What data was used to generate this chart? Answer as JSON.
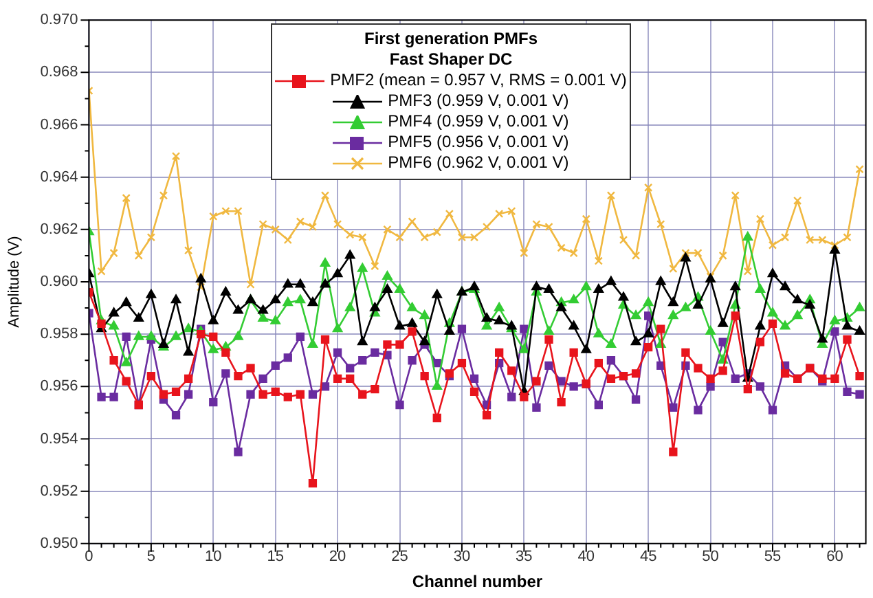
{
  "chart_data": {
    "type": "line",
    "xlabel": "Channel number",
    "ylabel": "Amplitude (V)",
    "legend_title": "First generation PMFs\nFast Shaper DC",
    "legend": "top",
    "grid": true,
    "line_style": "solid",
    "x": [
      0,
      1,
      2,
      3,
      4,
      5,
      6,
      7,
      8,
      9,
      10,
      11,
      12,
      13,
      14,
      15,
      16,
      17,
      18,
      19,
      20,
      21,
      22,
      23,
      24,
      25,
      26,
      27,
      28,
      29,
      30,
      31,
      32,
      33,
      34,
      35,
      36,
      37,
      38,
      39,
      40,
      41,
      42,
      43,
      44,
      45,
      46,
      47,
      48,
      49,
      50,
      51,
      52,
      53,
      54,
      55,
      56,
      57,
      58,
      59,
      60,
      61,
      62
    ],
    "xlim": [
      0,
      62.5
    ],
    "xticks": [
      0,
      5,
      10,
      15,
      20,
      25,
      30,
      35,
      40,
      45,
      50,
      55,
      60
    ],
    "ylim": [
      0.95,
      0.97
    ],
    "yticks": [
      {
        "value": 0.95,
        "label": "0.950"
      },
      {
        "value": 0.952,
        "label": "0.952"
      },
      {
        "value": 0.954,
        "label": "0.954"
      },
      {
        "value": 0.956,
        "label": "0.956"
      },
      {
        "value": 0.958,
        "label": "0.958"
      },
      {
        "value": 0.96,
        "label": "0.960"
      },
      {
        "value": 0.962,
        "label": "0.962"
      },
      {
        "value": 0.964,
        "label": "0.964"
      },
      {
        "value": 0.966,
        "label": "0.966"
      },
      {
        "value": 0.968,
        "label": "0.968"
      },
      {
        "value": 0.97,
        "label": "0.970"
      }
    ],
    "series": [
      {
        "name": "PMF2 (mean = 0.957 V, RMS = 0.001 V)",
        "color": "#e8141c",
        "marker": "square",
        "values": [
          0.9596,
          0.9584,
          0.957,
          0.9562,
          0.9553,
          0.9564,
          0.9557,
          0.9558,
          0.9563,
          0.958,
          0.9579,
          0.9573,
          0.9564,
          0.9567,
          0.9557,
          0.9558,
          0.9556,
          0.9557,
          0.9523,
          0.9578,
          0.9563,
          0.9563,
          0.9557,
          0.9559,
          0.9576,
          0.9576,
          0.9581,
          0.9564,
          0.9548,
          0.9565,
          0.9569,
          0.9558,
          0.9549,
          0.9573,
          0.9566,
          0.9556,
          0.9562,
          0.9578,
          0.9554,
          0.9573,
          0.9561,
          0.9569,
          0.9563,
          0.9564,
          0.9565,
          0.9575,
          0.9582,
          0.9535,
          0.9573,
          0.9567,
          0.9563,
          0.9566,
          0.9587,
          0.9559,
          0.9577,
          0.9584,
          0.9565,
          0.9563,
          0.9567,
          0.9563,
          0.9563,
          0.9578,
          0.9564
        ]
      },
      {
        "name": "PMF3 (0.959 V, 0.001 V)",
        "color": "#000000",
        "marker": "triangle",
        "values": [
          0.9603,
          0.9582,
          0.9588,
          0.9592,
          0.9586,
          0.9595,
          0.9576,
          0.9593,
          0.9573,
          0.9601,
          0.9585,
          0.9596,
          0.9589,
          0.9593,
          0.9589,
          0.9593,
          0.9599,
          0.9599,
          0.9592,
          0.9599,
          0.9603,
          0.961,
          0.9577,
          0.959,
          0.9597,
          0.9583,
          0.9584,
          0.9577,
          0.9595,
          0.9581,
          0.9596,
          0.9598,
          0.9586,
          0.9585,
          0.9583,
          0.9558,
          0.9598,
          0.9597,
          0.959,
          0.9583,
          0.9574,
          0.9597,
          0.96,
          0.9594,
          0.9577,
          0.958,
          0.96,
          0.9592,
          0.9609,
          0.9591,
          0.9601,
          0.9584,
          0.9598,
          0.9563,
          0.9583,
          0.9603,
          0.9598,
          0.9593,
          0.9591,
          0.9578,
          0.9612,
          0.9583,
          0.9581
        ]
      },
      {
        "name": "PMF4 (0.959 V, 0.001 V)",
        "color": "#33cc33",
        "marker": "triangle",
        "values": [
          0.9619,
          0.9585,
          0.9583,
          0.9569,
          0.9579,
          0.9579,
          0.9575,
          0.9579,
          0.9582,
          0.9581,
          0.9574,
          0.9575,
          0.9579,
          0.9593,
          0.9586,
          0.9585,
          0.9592,
          0.9593,
          0.9576,
          0.9607,
          0.9582,
          0.959,
          0.9605,
          0.9588,
          0.9602,
          0.9597,
          0.959,
          0.9587,
          0.956,
          0.9584,
          0.9596,
          0.9597,
          0.9583,
          0.959,
          0.9582,
          0.9574,
          0.9596,
          0.9581,
          0.9592,
          0.9593,
          0.9598,
          0.958,
          0.9576,
          0.9591,
          0.9587,
          0.9592,
          0.9576,
          0.9587,
          0.959,
          0.9594,
          0.9581,
          0.957,
          0.9591,
          0.9617,
          0.9597,
          0.9588,
          0.9583,
          0.9587,
          0.9593,
          0.9576,
          0.9585,
          0.9586,
          0.959
        ]
      },
      {
        "name": "PMF5 (0.956 V, 0.001 V)",
        "color": "#6a2ca0",
        "marker": "square",
        "values": [
          0.9588,
          0.9556,
          0.9556,
          0.9579,
          0.9553,
          0.9578,
          0.9555,
          0.9549,
          0.9557,
          0.9582,
          0.9554,
          0.9565,
          0.9535,
          0.9557,
          0.9563,
          0.9568,
          0.9571,
          0.9579,
          0.9557,
          0.956,
          0.9573,
          0.9567,
          0.957,
          0.9573,
          0.9572,
          0.9553,
          0.957,
          0.9576,
          0.9569,
          0.9564,
          0.9582,
          0.9563,
          0.9553,
          0.9569,
          0.9556,
          0.9582,
          0.9552,
          0.9568,
          0.9562,
          0.956,
          0.9561,
          0.9553,
          0.957,
          0.9564,
          0.9555,
          0.9587,
          0.9568,
          0.9552,
          0.9568,
          0.9551,
          0.956,
          0.9577,
          0.9563,
          0.9565,
          0.956,
          0.9551,
          0.9568,
          0.9563,
          0.9567,
          0.9562,
          0.9581,
          0.9558,
          0.9557
        ]
      },
      {
        "name": "PMF6 (0.962 V, 0.001 V)",
        "color": "#f0b840",
        "marker": "cross",
        "values": [
          0.9673,
          0.9604,
          0.9611,
          0.9632,
          0.961,
          0.9617,
          0.9633,
          0.9648,
          0.9612,
          0.9598,
          0.9625,
          0.9627,
          0.9627,
          0.9599,
          0.9622,
          0.962,
          0.9616,
          0.9623,
          0.9621,
          0.9633,
          0.9622,
          0.9618,
          0.9617,
          0.9606,
          0.962,
          0.9617,
          0.9623,
          0.9617,
          0.9619,
          0.9626,
          0.9617,
          0.9617,
          0.9621,
          0.9626,
          0.9627,
          0.9611,
          0.9622,
          0.9621,
          0.9613,
          0.9611,
          0.9624,
          0.9608,
          0.9633,
          0.9616,
          0.961,
          0.9636,
          0.9622,
          0.9605,
          0.9611,
          0.9611,
          0.9602,
          0.961,
          0.9633,
          0.9604,
          0.9624,
          0.9614,
          0.9617,
          0.9631,
          0.9616,
          0.9616,
          0.9614,
          0.9617,
          0.9643
        ]
      }
    ]
  }
}
